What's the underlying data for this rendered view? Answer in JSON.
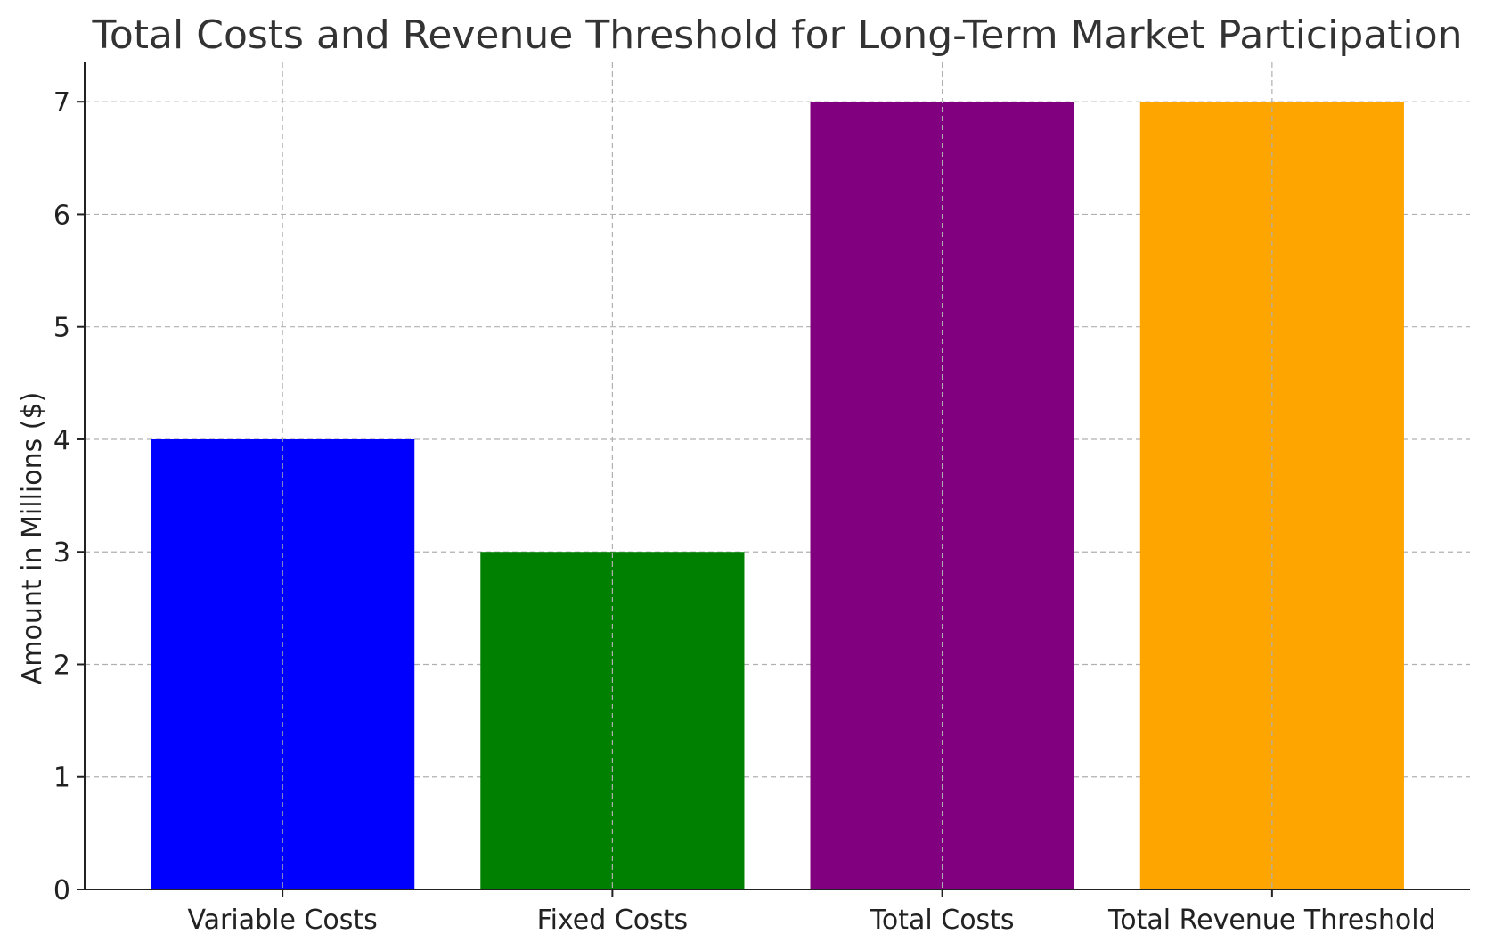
{
  "chart_data": {
    "type": "bar",
    "title": "Total Costs and Revenue Threshold for Long-Term Market Participation",
    "xlabel": "",
    "ylabel": "Amount in Millions ($)",
    "categories": [
      "Variable Costs",
      "Fixed Costs",
      "Total Costs",
      "Total Revenue Threshold"
    ],
    "values": [
      4,
      3,
      7,
      7
    ],
    "colors": [
      "#0000ff",
      "#008000",
      "#800080",
      "#ffa500"
    ],
    "ylim": [
      0,
      7.35
    ],
    "yticks": [
      0,
      1,
      2,
      3,
      4,
      5,
      6,
      7
    ],
    "grid": true,
    "legend": "none"
  }
}
